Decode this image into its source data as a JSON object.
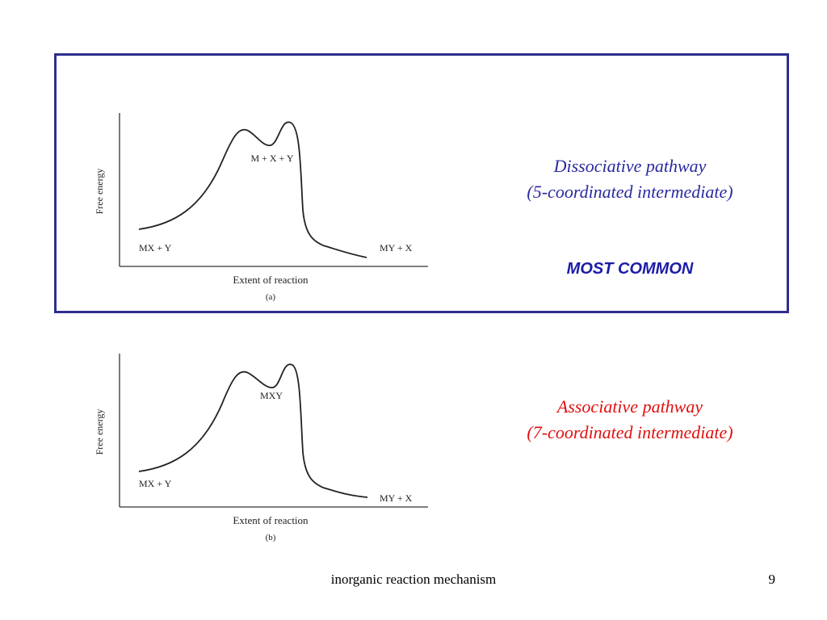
{
  "diagrams": [
    {
      "y_axis_label": "Free energy",
      "x_axis_label": "Extent of reaction",
      "sublabel": "(a)",
      "reactants": "MX + Y",
      "products": "MY + X",
      "intermediate": "M + X + Y"
    },
    {
      "y_axis_label": "Free energy",
      "x_axis_label": "Extent of reaction",
      "sublabel": "(b)",
      "reactants": "MX + Y",
      "products": "MY + X",
      "intermediate": "MXY"
    }
  ],
  "pathway_a": {
    "line1": "Dissociative pathway",
    "line2": "(5-coordinated intermediate)",
    "emphasis": "MOST COMMON",
    "color": "#2a2aa0"
  },
  "pathway_b": {
    "line1": "Associative pathway",
    "line2": "(7-coordinated intermediate)",
    "color": "#e01010"
  },
  "footer": {
    "text": "inorganic reaction mechanism",
    "page_number": "9"
  }
}
